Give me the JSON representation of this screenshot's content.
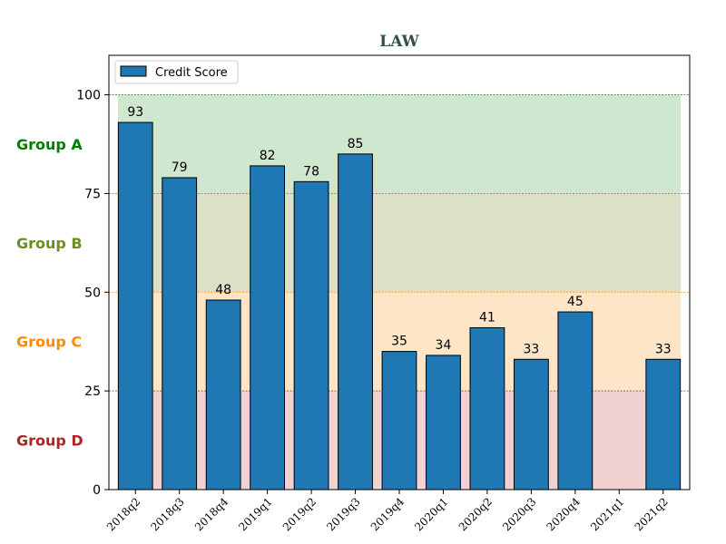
{
  "chart_data": {
    "type": "bar",
    "title": "LAW",
    "xlabel": "",
    "ylabel": "",
    "ylim": [
      0,
      110
    ],
    "yticks": [
      0,
      25,
      50,
      75,
      100
    ],
    "categories": [
      "2018q2",
      "2018q3",
      "2018q4",
      "2019q1",
      "2019q2",
      "2019q3",
      "2019q4",
      "2020q1",
      "2020q2",
      "2020q3",
      "2020q4",
      "2021q1",
      "2021q2"
    ],
    "series": [
      {
        "name": "Credit Score",
        "color": "#1f77b4",
        "values": [
          93,
          79,
          48,
          82,
          78,
          85,
          35,
          34,
          41,
          33,
          45,
          null,
          33
        ]
      }
    ],
    "legend": {
      "placement": "top-left",
      "entries": [
        "Credit Score"
      ]
    },
    "grid": false,
    "bands": [
      {
        "label": "Group A",
        "from": 75,
        "to": 100,
        "fill": "#cfe6cf",
        "line": "#2e8b2e",
        "label_color": "#008000"
      },
      {
        "label": "Group B",
        "from": 50,
        "to": 75,
        "fill": "#dbe1c7",
        "line": "#808000",
        "label_color": "#6b8e23"
      },
      {
        "label": "Group C",
        "from": 25,
        "to": 50,
        "fill": "#fde6c8",
        "line": "#ff8c00",
        "label_color": "#ff8c00"
      },
      {
        "label": "Group D",
        "from": 0,
        "to": 25,
        "fill": "#f0d2d2",
        "line": "#b22222",
        "label_color": "#b22222"
      }
    ]
  }
}
